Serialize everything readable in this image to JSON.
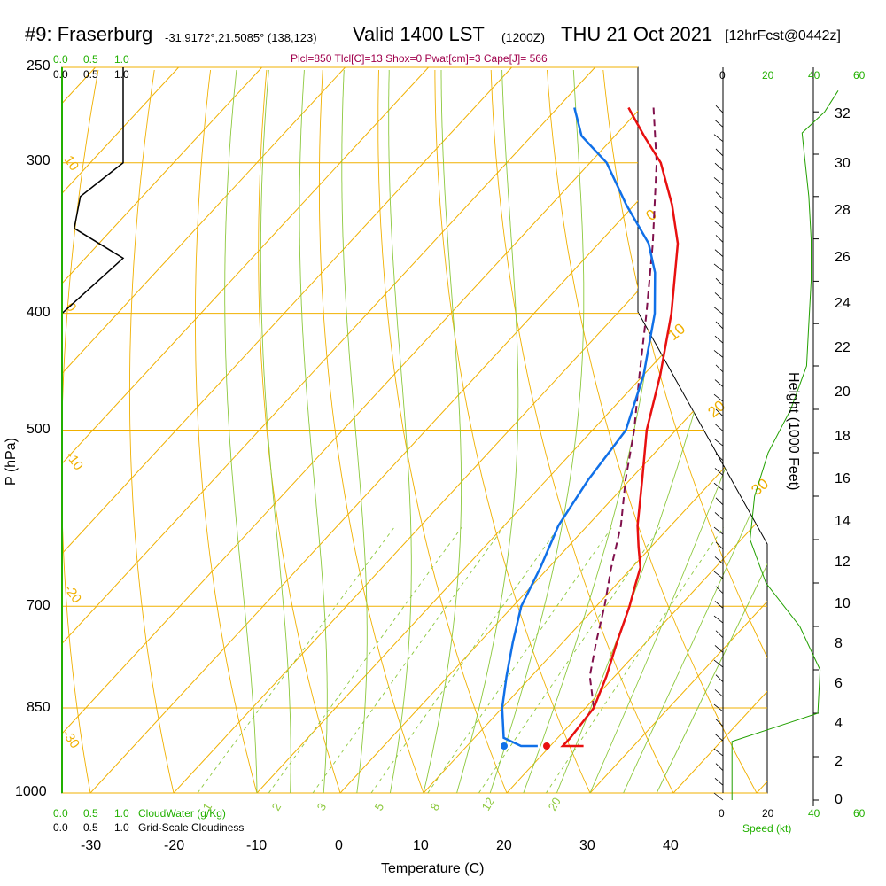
{
  "header": {
    "station": "#9: Fraserburg",
    "coords": "-31.9172°,21.5085° (138,123)",
    "valid": "Valid 1400 LST",
    "utc": "(1200Z)",
    "date": "THU 21 Oct 2021",
    "fcst": "[12hrFcst@0442z]",
    "params": "Plcl=850 Tlcl[C]=13 Shox=0 Pwat[cm]=3 Cape[J]= 566"
  },
  "axes": {
    "ylabel": "P (hPa)",
    "xlabel": "Temperature (C)",
    "height_label": "Height (1000 Feet)",
    "speed_label": "Speed (kt)",
    "cloudwater_label": "CloudWater (g/Kg)",
    "cloudiness_label": "Grid-Scale Cloudiness"
  },
  "colors": {
    "isotherm": "#f0b000",
    "mixing_ratio": "#8cc83c",
    "temperature": "#e81010",
    "dewpoint": "#1070e8",
    "parcel": "#80104c",
    "wind_speed": "#22a000",
    "cloudiness": "#000000"
  },
  "chart_data": {
    "type": "skew-t",
    "pressure_ticks": [
      "250",
      "300",
      "400",
      "500",
      "700",
      "850",
      "1000"
    ],
    "temperature_ticks": [
      "-30",
      "-20",
      "-10",
      "0",
      "10",
      "20",
      "30",
      "40"
    ],
    "height_ticks_kft": [
      "0",
      "2",
      "4",
      "6",
      "8",
      "10",
      "12",
      "14",
      "16",
      "18",
      "20",
      "22",
      "24",
      "26",
      "28",
      "30",
      "32"
    ],
    "cloud_scale_top_green": [
      "0.0",
      "0.5",
      "1.0"
    ],
    "cloud_scale_top_black": [
      "0.0",
      "0.5",
      "1.0"
    ],
    "cloud_scale_bottom_green": [
      "0.0",
      "0.5",
      "1.0"
    ],
    "cloud_scale_bottom_black": [
      "0.0",
      "0.5",
      "1.0"
    ],
    "speed_ticks_top_black": [
      "0"
    ],
    "speed_ticks_top_green": [
      "20",
      "40",
      "60"
    ],
    "speed_ticks_bottom_black": [
      "0",
      "20"
    ],
    "speed_ticks_bottom_green": [
      "40",
      "60"
    ],
    "mixing_ratio_labels": [
      "1",
      "2",
      "3",
      "5",
      "8",
      "12",
      "20"
    ],
    "isotherm_labels": [
      "0",
      "10",
      "20",
      "30"
    ],
    "left_edge_labels": [
      "10",
      "0",
      "-10",
      "-20",
      "-30"
    ],
    "xlim": [
      -35,
      50
    ],
    "plim": [
      1000,
      250
    ],
    "temperature_profile": [
      [
        1000,
        24.0
      ],
      [
        980,
        22.5
      ],
      [
        950,
        21.5
      ],
      [
        900,
        21.5
      ],
      [
        850,
        21.0
      ],
      [
        800,
        19.0
      ],
      [
        750,
        16.5
      ],
      [
        700,
        14.0
      ],
      [
        675,
        12.5
      ],
      [
        650,
        11.0
      ],
      [
        625,
        8.5
      ],
      [
        600,
        6.0
      ],
      [
        550,
        1.5
      ],
      [
        500,
        -3.5
      ],
      [
        450,
        -8.0
      ],
      [
        400,
        -13.5
      ],
      [
        350,
        -20.5
      ],
      [
        325,
        -25.5
      ],
      [
        300,
        -31.5
      ],
      [
        285,
        -36.5
      ],
      [
        270,
        -41.5
      ]
    ],
    "dewpoint_profile": [
      [
        1000,
        18.5
      ],
      [
        980,
        18.0
      ],
      [
        950,
        16.5
      ],
      [
        900,
        13.5
      ],
      [
        850,
        10.0
      ],
      [
        800,
        7.0
      ],
      [
        750,
        4.0
      ],
      [
        700,
        1.0
      ],
      [
        650,
        -1.0
      ],
      [
        600,
        -3.5
      ],
      [
        550,
        -5.0
      ],
      [
        500,
        -6.0
      ],
      [
        450,
        -10.0
      ],
      [
        400,
        -15.5
      ],
      [
        370,
        -20.0
      ],
      [
        350,
        -24.0
      ],
      [
        325,
        -31.0
      ],
      [
        300,
        -38.0
      ],
      [
        285,
        -44.0
      ],
      [
        270,
        -48.0
      ]
    ],
    "parcel_profile": [
      [
        850,
        21.0
      ],
      [
        800,
        17.0
      ],
      [
        750,
        14.0
      ],
      [
        700,
        11.0
      ],
      [
        650,
        7.5
      ],
      [
        600,
        4.0
      ],
      [
        550,
        -0.5
      ],
      [
        500,
        -5.0
      ],
      [
        450,
        -10.5
      ],
      [
        400,
        -16.5
      ],
      [
        350,
        -23.5
      ],
      [
        300,
        -32.0
      ],
      [
        270,
        -38.5
      ]
    ],
    "surface_temperature": 25,
    "surface_dewpoint": 19.5,
    "cloudiness_profile": [
      [
        250,
        1.0
      ],
      [
        300,
        1.0
      ],
      [
        320,
        0.3
      ],
      [
        340,
        0.2
      ],
      [
        360,
        1.0
      ],
      [
        400,
        0.0
      ]
    ],
    "wind_speed_profile_kt": [
      [
        0,
        4
      ],
      [
        2.7,
        4
      ],
      [
        4,
        42
      ],
      [
        6,
        43
      ],
      [
        8,
        34
      ],
      [
        10,
        19
      ],
      [
        12,
        12
      ],
      [
        14,
        14
      ],
      [
        16,
        20
      ],
      [
        18,
        30
      ],
      [
        20,
        37
      ],
      [
        22,
        38
      ],
      [
        24,
        39
      ],
      [
        26,
        39
      ],
      [
        28,
        38
      ],
      [
        30,
        36
      ],
      [
        31,
        35
      ],
      [
        32,
        45
      ],
      [
        33,
        51
      ]
    ],
    "wind_barbs": {
      "count": 48
    }
  }
}
